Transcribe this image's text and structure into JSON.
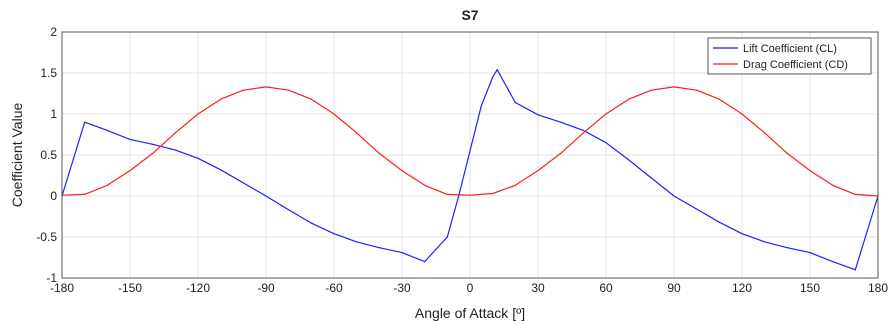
{
  "chart_data": {
    "type": "line",
    "title": "S7",
    "xlabel": "Angle of Attack [º]",
    "ylabel": "Coefficient Value",
    "xlim": [
      -180,
      180
    ],
    "ylim": [
      -1,
      2
    ],
    "xticks": [
      -180,
      -150,
      -120,
      -90,
      -60,
      -30,
      0,
      30,
      60,
      90,
      120,
      150,
      180
    ],
    "yticks": [
      -1,
      -0.5,
      0,
      0.5,
      1,
      1.5,
      2
    ],
    "xtick_labels": [
      "-180",
      "-150",
      "-120",
      "-90",
      "-60",
      "-30",
      "0",
      "30",
      "60",
      "90",
      "120",
      "150",
      "180"
    ],
    "ytick_labels": [
      "-1",
      "-0.5",
      "0",
      "0.5",
      "1",
      "1.5",
      "2"
    ],
    "grid": true,
    "legend_position": "top-right",
    "series": [
      {
        "name": "Lift Coefficient (CL)",
        "color": "#1f1fff",
        "x": [
          -180,
          -170,
          -160,
          -150,
          -140,
          -130,
          -120,
          -110,
          -100,
          -90,
          -80,
          -70,
          -60,
          -50,
          -40,
          -30,
          -20,
          -10,
          -5,
          0,
          5,
          10,
          12,
          20,
          30,
          40,
          50,
          60,
          70,
          80,
          90,
          100,
          110,
          120,
          130,
          140,
          150,
          160,
          170,
          180
        ],
        "y": [
          0,
          0.9,
          0.8,
          0.69,
          0.63,
          0.56,
          0.46,
          0.32,
          0.16,
          0,
          -0.17,
          -0.33,
          -0.46,
          -0.56,
          -0.63,
          -0.69,
          -0.8,
          -0.5,
          0,
          0.55,
          1.1,
          1.45,
          1.54,
          1.14,
          0.99,
          0.9,
          0.8,
          0.65,
          0.44,
          0.22,
          0,
          -0.16,
          -0.32,
          -0.46,
          -0.56,
          -0.63,
          -0.69,
          -0.8,
          -0.9,
          0
        ]
      },
      {
        "name": "Drag Coefficient (CD)",
        "color": "#ff1f1f",
        "x": [
          -180,
          -170,
          -160,
          -150,
          -140,
          -130,
          -120,
          -110,
          -100,
          -90,
          -80,
          -70,
          -60,
          -50,
          -40,
          -30,
          -20,
          -10,
          0,
          10,
          20,
          30,
          40,
          50,
          60,
          70,
          80,
          90,
          100,
          110,
          120,
          130,
          140,
          150,
          160,
          170,
          180
        ],
        "y": [
          0.01,
          0.02,
          0.13,
          0.31,
          0.52,
          0.77,
          1.0,
          1.18,
          1.29,
          1.33,
          1.29,
          1.18,
          1.0,
          0.77,
          0.52,
          0.31,
          0.13,
          0.02,
          0.01,
          0.03,
          0.13,
          0.31,
          0.52,
          0.77,
          1.0,
          1.18,
          1.29,
          1.33,
          1.29,
          1.18,
          1.0,
          0.77,
          0.52,
          0.31,
          0.13,
          0.02,
          0.0
        ]
      }
    ]
  }
}
